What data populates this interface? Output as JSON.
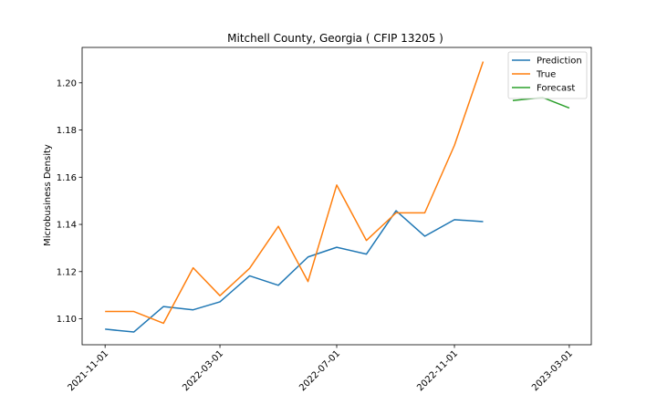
{
  "chart_data": {
    "type": "line",
    "title": "Mitchell County, Georgia ( CFIP 13205 )",
    "xlabel": "",
    "ylabel": "Microbusiness Density",
    "x_ticks": [
      "2021-11-01",
      "2022-03-01",
      "2022-07-01",
      "2022-11-01",
      "2023-03-01"
    ],
    "y_ticks": [
      "1.10",
      "1.12",
      "1.14",
      "1.16",
      "1.18",
      "1.20"
    ],
    "ylim": [
      1.089,
      1.215
    ],
    "xlim": [
      "2021-10-08",
      "2023-03-24"
    ],
    "legend_position": "top-right",
    "grid": false,
    "series": [
      {
        "name": "Prediction",
        "color": "#1f77b4",
        "x": [
          "2021-11-01",
          "2021-12-01",
          "2022-01-01",
          "2022-02-01",
          "2022-03-01",
          "2022-04-01",
          "2022-05-01",
          "2022-06-01",
          "2022-07-01",
          "2022-08-01",
          "2022-09-01",
          "2022-10-01",
          "2022-11-01",
          "2022-12-01"
        ],
        "y": [
          1.0956,
          1.0944,
          1.1052,
          1.1038,
          1.1072,
          1.1182,
          1.1142,
          1.1262,
          1.1303,
          1.1274,
          1.1458,
          1.135,
          1.142,
          1.1412
        ]
      },
      {
        "name": "True",
        "color": "#ff7f0e",
        "x": [
          "2021-11-01",
          "2021-12-01",
          "2022-01-01",
          "2022-02-01",
          "2022-03-01",
          "2022-04-01",
          "2022-05-01",
          "2022-06-01",
          "2022-07-01",
          "2022-08-01",
          "2022-09-01",
          "2022-10-01",
          "2022-11-01",
          "2022-12-01"
        ],
        "y": [
          1.1031,
          1.1031,
          1.0981,
          1.1216,
          1.1098,
          1.1214,
          1.1392,
          1.1158,
          1.1567,
          1.1332,
          1.1449,
          1.1449,
          1.1735,
          1.209
        ]
      },
      {
        "name": "Forecast",
        "color": "#2ca02c",
        "x": [
          "2023-01-01",
          "2023-02-01",
          "2023-03-01"
        ],
        "y": [
          1.1925,
          1.1938,
          1.1893
        ]
      }
    ]
  }
}
